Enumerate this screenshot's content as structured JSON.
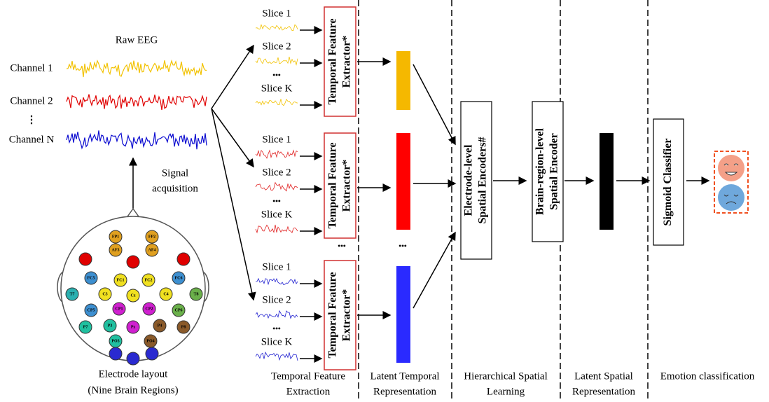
{
  "raw_eeg": {
    "title": "Raw EEG",
    "channels": [
      "Channel 1",
      "Channel 2",
      "⋮",
      "Channel N"
    ]
  },
  "signal_acquisition": [
    "Signal",
    "acquisition"
  ],
  "electrode_layout": {
    "labels": [
      "FP1",
      "FP2",
      "AF3",
      "AF4",
      "FC5",
      "FC1",
      "FC2",
      "FC6",
      "T7",
      "C3",
      "Cz",
      "C4",
      "T8",
      "CP5",
      "CP1",
      "CP2",
      "CP6",
      "P7",
      "P3",
      "Pz",
      "P4",
      "P8",
      "PO3",
      "PO4"
    ],
    "caption": [
      "Electrode layout",
      "(Nine Brain Regions)"
    ]
  },
  "slice_groups": [
    {
      "slices": [
        "Slice 1",
        "Slice 2",
        "•••",
        "Slice K"
      ],
      "extractor": [
        "Temporal Feature",
        "Extractor*"
      ]
    },
    {
      "slices": [
        "Slice 1",
        "Slice 2",
        "•••",
        "Slice K"
      ],
      "extractor": [
        "Temporal Feature",
        "Extractor*"
      ]
    },
    {
      "slices": [
        "Slice 1",
        "Slice 2",
        "•••",
        "Slice K"
      ],
      "extractor": [
        "Temporal Feature",
        "Extractor*"
      ]
    }
  ],
  "ellipses": [
    "•••",
    "•••"
  ],
  "electrode_encoder": [
    "Electrode-level",
    "Spatial Encoders#"
  ],
  "brain_encoder": [
    "Brain-region-level",
    "Spatial Encoder"
  ],
  "classifier": "Sigmoid Classifier",
  "sections": [
    [
      "Temporal Feature",
      "Extraction"
    ],
    [
      "Latent Temporal",
      "Representation"
    ],
    [
      "Hierarchical Spatial",
      "Learning"
    ],
    [
      "Latent Spatial",
      "Representation"
    ],
    [
      "Emotion classification"
    ]
  ]
}
